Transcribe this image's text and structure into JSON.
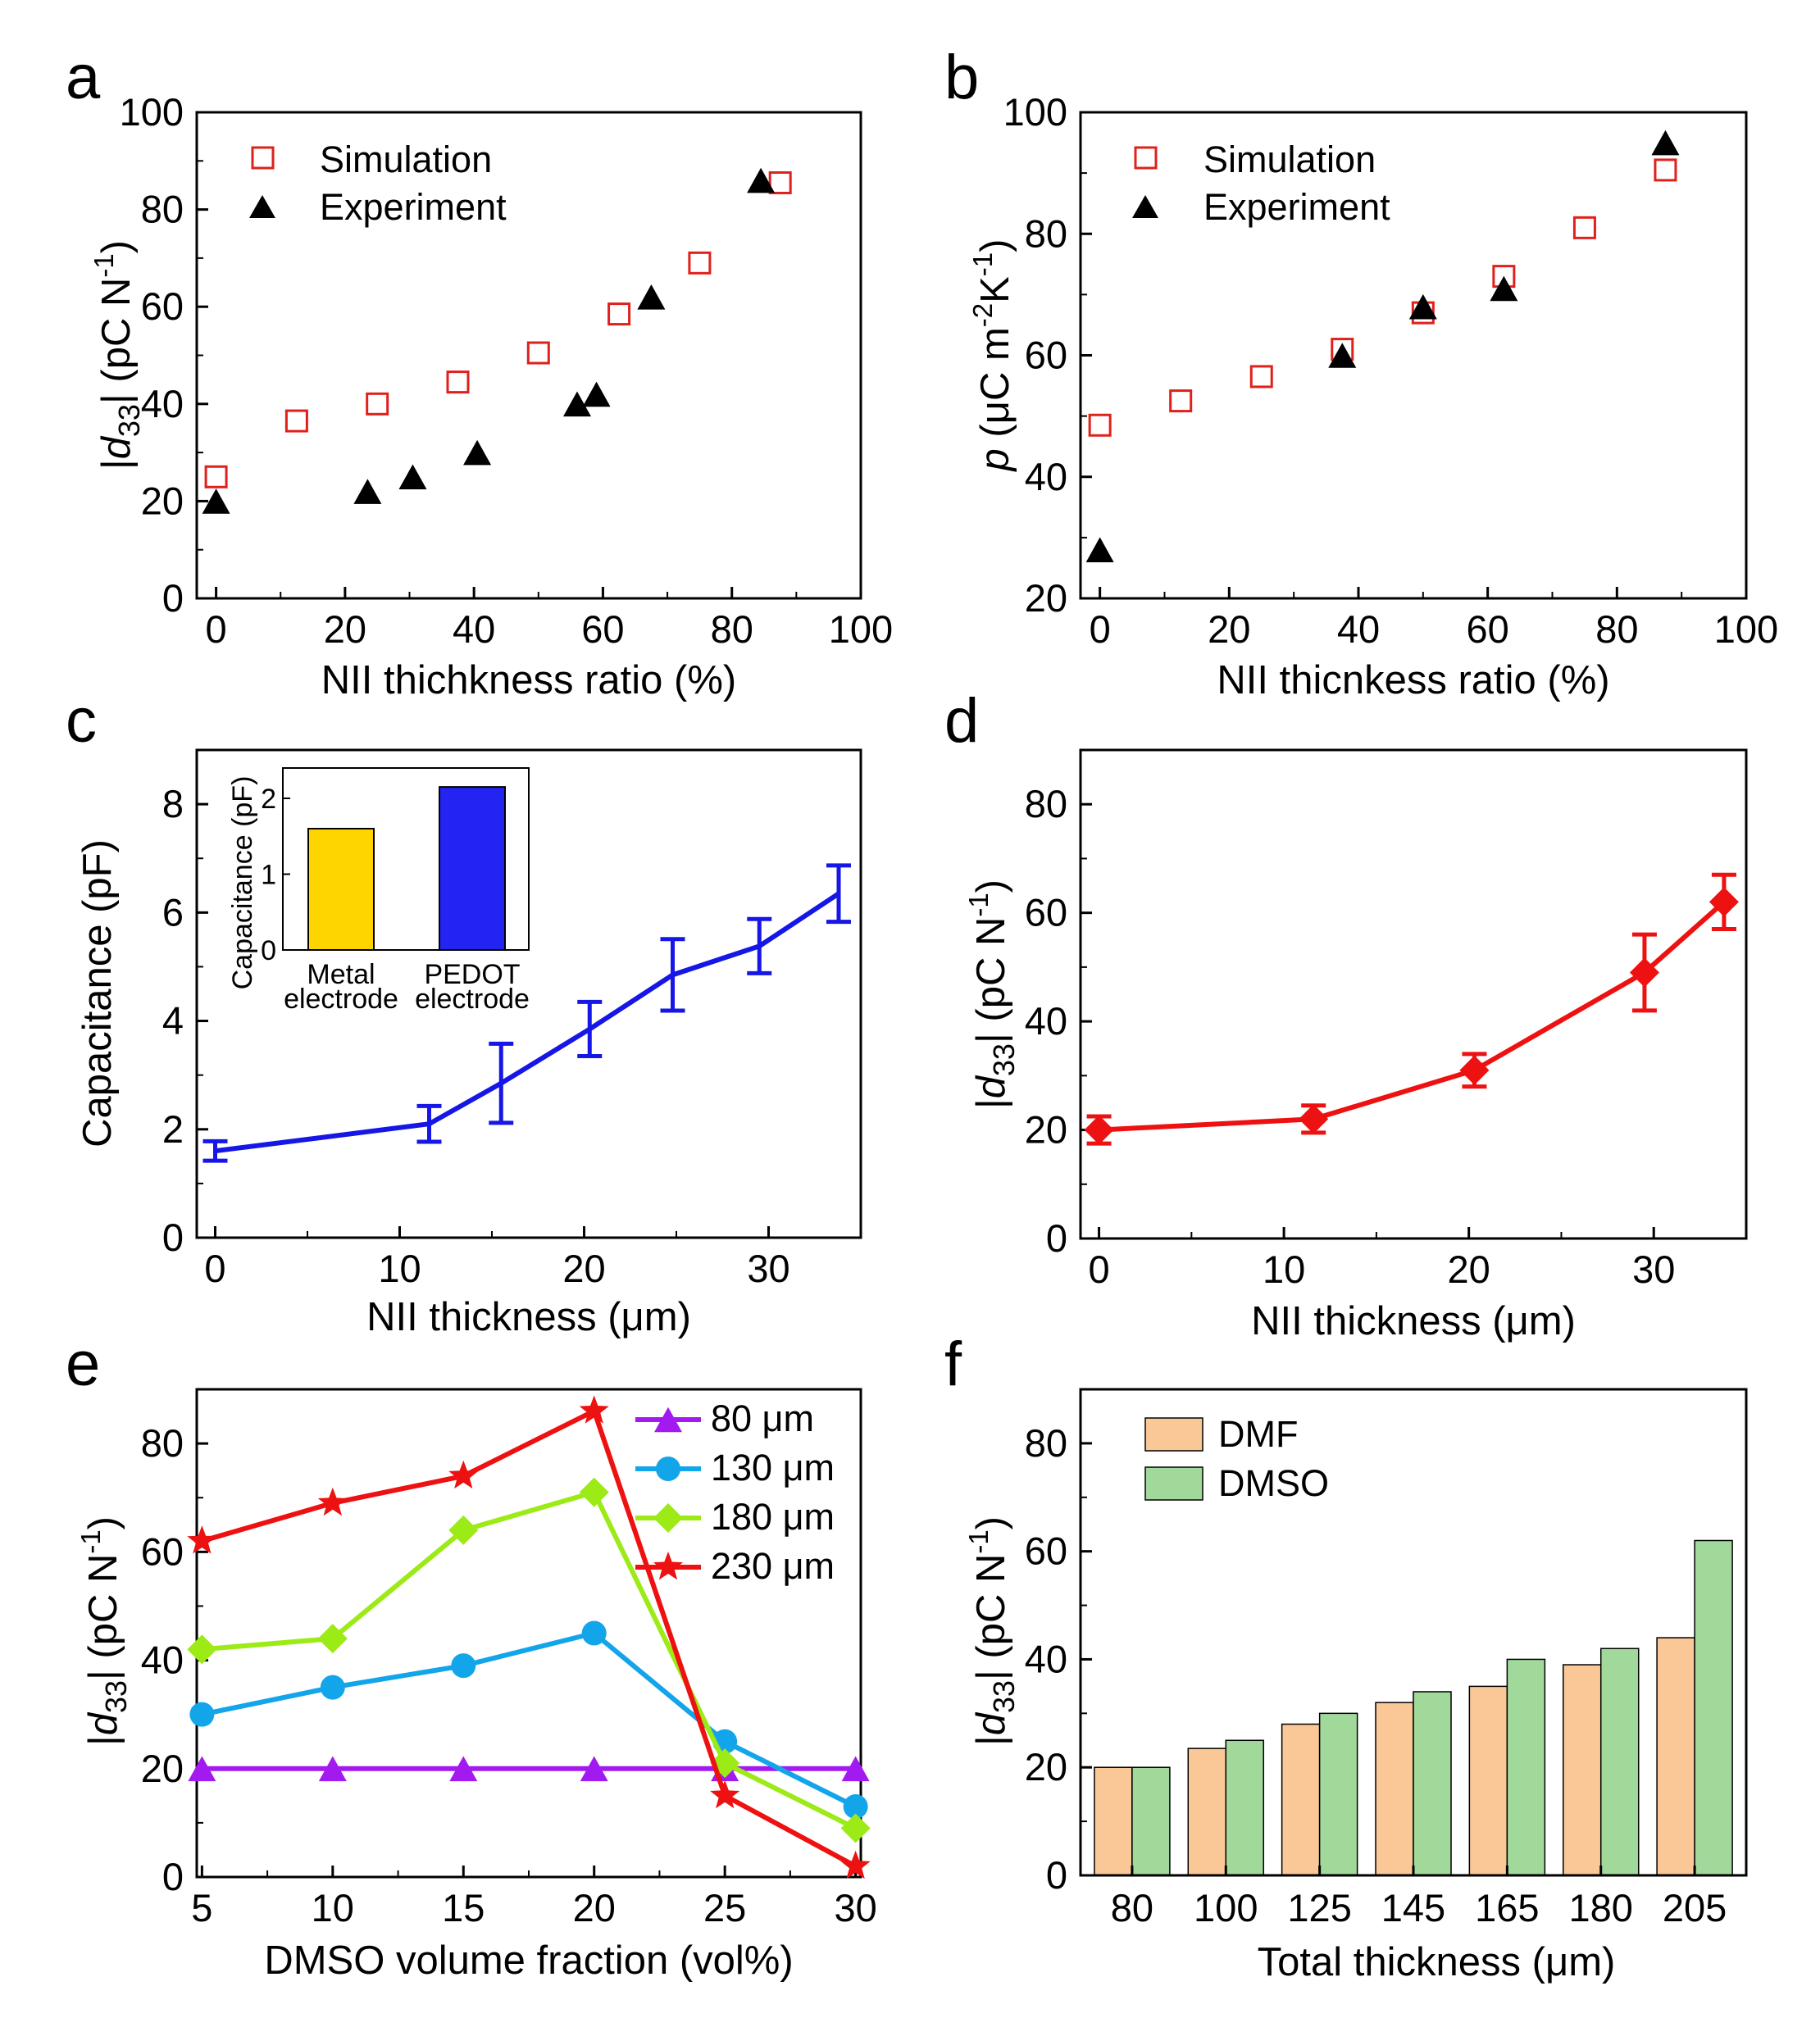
{
  "colors": {
    "sim": "#e0201b",
    "exp": "#000000",
    "blue": "#1616e6",
    "red": "#ee1111",
    "gold": "#ffd500",
    "inset_blue": "#2424f2",
    "violet": "#a31af0",
    "cyan": "#12a5ea",
    "lime": "#9cea16",
    "dmf": "#f9c896",
    "dmso": "#a1d99b"
  },
  "panels": {
    "a": {
      "letter": "a",
      "xlabel": "NII thichkness ratio (%)",
      "ylabel_pre": "|",
      "ylabel_sym": "d",
      "ylabel_sub": "33",
      "ylabel_post": "| (pC N",
      "ylabel_sup": "-1",
      "ylabel_end": ")",
      "xticks": [
        "0",
        "20",
        "40",
        "60",
        "80",
        "100"
      ],
      "yticks": [
        "0",
        "20",
        "40",
        "60",
        "80",
        "100"
      ]
    },
    "b": {
      "letter": "b",
      "xlabel": "NII thicnkess ratio (%)",
      "ylabel_sym": "p",
      "ylabel_a": " (μC m",
      "ylabel_sup1": "-2",
      "ylabel_b": "K",
      "ylabel_sup2": "-1",
      "ylabel_c": ")",
      "xticks": [
        "0",
        "20",
        "40",
        "60",
        "80",
        "100"
      ],
      "yticks": [
        "20",
        "40",
        "60",
        "80",
        "100"
      ]
    },
    "c": {
      "letter": "c",
      "xlabel": "NII thickness (μm)",
      "ylabel": "Capacitance (pF)",
      "xticks": [
        "0",
        "10",
        "20",
        "30"
      ],
      "yticks": [
        "0",
        "2",
        "4",
        "6",
        "8"
      ],
      "inset": {
        "ylabel": "Capacitance (pF)",
        "yticks": [
          "0",
          "1",
          "2"
        ],
        "cat1_line1": "Metal",
        "cat1_line2": "electrode",
        "cat2_line1": "PEDOT",
        "cat2_line2": "electrode"
      }
    },
    "d": {
      "letter": "d",
      "xlabel": "NII thickness (μm)",
      "ylabel_pre": "|",
      "ylabel_sym": "d",
      "ylabel_sub": "33",
      "ylabel_post": "| (pC N",
      "ylabel_sup": "-1",
      "ylabel_end": ")",
      "xticks": [
        "0",
        "10",
        "20",
        "30"
      ],
      "yticks": [
        "0",
        "20",
        "40",
        "60",
        "80"
      ]
    },
    "e": {
      "letter": "e",
      "xlabel": "DMSO volume fraction (vol%)",
      "ylabel_pre": "|",
      "ylabel_sym": "d",
      "ylabel_sub": "33",
      "ylabel_post": "| (pC N",
      "ylabel_sup": "-1",
      "ylabel_end": ")",
      "xticks": [
        "5",
        "10",
        "15",
        "20",
        "25",
        "30"
      ],
      "yticks": [
        "0",
        "20",
        "40",
        "60",
        "80"
      ]
    },
    "f": {
      "letter": "f",
      "xlabel": "Total thickness (μm)",
      "ylabel_pre": "|",
      "ylabel_sym": "d",
      "ylabel_sub": "33",
      "ylabel_post": "| (pC N",
      "ylabel_sup": "-1",
      "ylabel_end": ")",
      "xticks": [
        "80",
        "100",
        "125",
        "145",
        "165",
        "180",
        "205"
      ],
      "yticks": [
        "0",
        "20",
        "40",
        "60",
        "80"
      ]
    }
  },
  "chart_data": [
    {
      "panel": "a",
      "type": "scatter",
      "xlabel": "NII thichkness ratio (%)",
      "ylabel": "|d33| (pC N-1)",
      "xlim": [
        -3,
        100
      ],
      "ylim": [
        0,
        100
      ],
      "legend": "top-left",
      "series": [
        {
          "name": "Simulation",
          "marker": "open-square",
          "x": [
            0,
            12.5,
            25,
            37.5,
            50,
            62.5,
            75,
            87.5
          ],
          "y": [
            25,
            36.5,
            40,
            44.5,
            50.5,
            58.5,
            69,
            85.5
          ]
        },
        {
          "name": "Experiment",
          "marker": "filled-triangle",
          "x": [
            0,
            23.5,
            30.5,
            40.5,
            56,
            59,
            67.5,
            84.5
          ],
          "y": [
            20,
            22,
            25,
            30,
            40,
            42,
            62,
            86
          ]
        }
      ]
    },
    {
      "panel": "b",
      "type": "scatter",
      "xlabel": "NII thicnkess ratio (%)",
      "ylabel": "p (μC m-2K-1)",
      "xlim": [
        -3,
        100
      ],
      "ylim": [
        20,
        100
      ],
      "legend": "top-left",
      "series": [
        {
          "name": "Simulation",
          "marker": "open-square",
          "x": [
            0,
            12.5,
            25,
            37.5,
            50,
            62.5,
            75,
            87.5
          ],
          "y": [
            48.5,
            52.5,
            56.5,
            61,
            67,
            73,
            81,
            90.5
          ]
        },
        {
          "name": "Experiment",
          "marker": "filled-triangle",
          "x": [
            0,
            37.5,
            50,
            62.5,
            87.5
          ],
          "y": [
            28,
            60,
            68,
            71,
            95
          ]
        }
      ]
    },
    {
      "panel": "c",
      "type": "line",
      "xlabel": "NII thickness (μm)",
      "ylabel": "Capacitance (pF)",
      "xlim": [
        -1,
        35
      ],
      "ylim": [
        0,
        9
      ],
      "series": [
        {
          "x": [
            0,
            11.6,
            15.5,
            20.3,
            24.8,
            29.5,
            33.8
          ],
          "y": [
            1.6,
            2.1,
            2.85,
            3.85,
            4.85,
            5.38,
            6.35
          ],
          "err": [
            0.18,
            0.33,
            0.73,
            0.5,
            0.66,
            0.5,
            0.52
          ]
        }
      ],
      "inset": {
        "type": "bar",
        "categories": [
          "Metal electrode",
          "PEDOT electrode"
        ],
        "values": [
          1.6,
          2.15
        ],
        "ylim": [
          0,
          2.4
        ],
        "ylabel": "Capacitance (pF)"
      }
    },
    {
      "panel": "d",
      "type": "line",
      "xlabel": "NII thickness (μm)",
      "ylabel": "|d33| (pC N-1)",
      "xlim": [
        -1,
        35
      ],
      "ylim": [
        0,
        90
      ],
      "series": [
        {
          "x": [
            0,
            11.6,
            20.3,
            29.5,
            33.8
          ],
          "y": [
            20,
            22,
            31,
            49,
            62
          ],
          "err": [
            2.5,
            2.5,
            3,
            7,
            5
          ]
        }
      ]
    },
    {
      "panel": "e",
      "type": "line",
      "xlabel": "DMSO volume fraction (vol%)",
      "ylabel": "|d33| (pC N-1)",
      "xlim": [
        4.8,
        30.2
      ],
      "ylim": [
        0,
        90
      ],
      "legend": "top-right",
      "x": [
        5,
        10,
        15,
        20,
        25,
        30
      ],
      "series": [
        {
          "name": "80 μm",
          "marker": "triangle",
          "values": [
            20,
            20,
            20,
            20,
            20,
            20
          ]
        },
        {
          "name": "130 μm",
          "marker": "circle",
          "values": [
            30,
            35,
            39,
            45,
            25,
            13
          ]
        },
        {
          "name": "180 μm",
          "marker": "diamond",
          "values": [
            42,
            44,
            64,
            71,
            21,
            9
          ]
        },
        {
          "name": "230 μm",
          "marker": "star",
          "values": [
            62,
            69,
            74,
            86,
            15,
            2
          ]
        }
      ]
    },
    {
      "panel": "f",
      "type": "bar",
      "xlabel": "Total thickness (μm)",
      "ylabel": "|d33| (pC N-1)",
      "ylim": [
        0,
        90
      ],
      "legend": "top-left",
      "categories": [
        "80",
        "100",
        "125",
        "145",
        "165",
        "180",
        "205"
      ],
      "series": [
        {
          "name": "DMF",
          "values": [
            20,
            23.5,
            28,
            32,
            35,
            39,
            44
          ]
        },
        {
          "name": "DMSO",
          "values": [
            20,
            25,
            30,
            34,
            40,
            42,
            62
          ]
        }
      ]
    }
  ]
}
